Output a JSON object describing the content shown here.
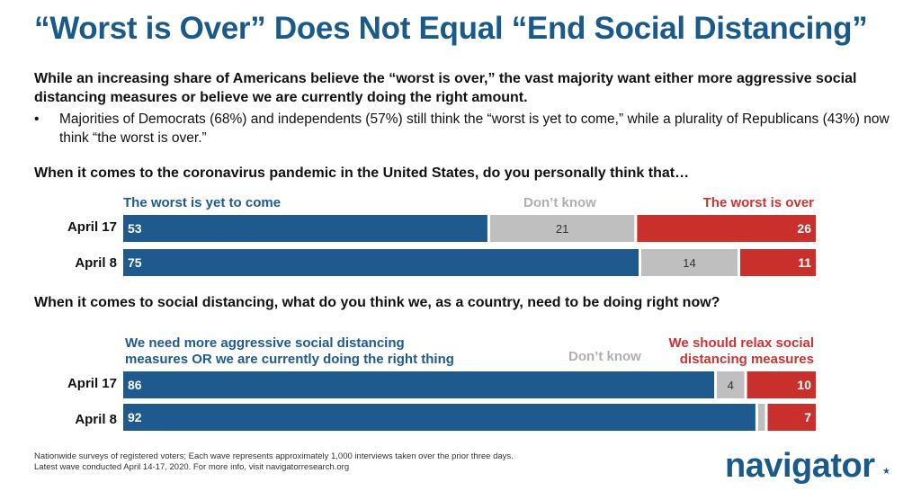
{
  "title": "“Worst is Over” Does Not Equal “End Social Distancing”",
  "lead": "While an increasing share of Americans believe the “worst is over,” the vast majority want either more aggressive social distancing measures or believe we are currently doing the right amount.",
  "bullet": {
    "marker": "•",
    "text": "Majorities of Democrats (68%) and independents (57%) still think the “worst is yet to come,” while a plurality of Republicans (43%) now think “the worst is over.”"
  },
  "chart_data": [
    {
      "type": "bar",
      "stacked": true,
      "orientation": "horizontal",
      "title": "When it comes to the coronavirus pandemic in the United States, do you personally think that…",
      "categories": [
        "April 17",
        "April 8"
      ],
      "series": [
        {
          "name": "The worst is yet to come",
          "values": [
            53,
            75
          ],
          "color": "#1f5a8e"
        },
        {
          "name": "Don’t know",
          "values": [
            21,
            14
          ],
          "color": "#bfbfbf"
        },
        {
          "name": "The worst is over",
          "values": [
            26,
            11
          ],
          "color": "#c9302c"
        }
      ],
      "xlim": [
        0,
        100
      ]
    },
    {
      "type": "bar",
      "stacked": true,
      "orientation": "horizontal",
      "title": "When it comes to social distancing, what do you think we, as a country, need to be doing right now?",
      "categories": [
        "April 17",
        "April 8"
      ],
      "series": [
        {
          "name": "We need more aggressive social distancing measures OR we are currently doing the right thing",
          "values": [
            86,
            92
          ],
          "color": "#1f5a8e"
        },
        {
          "name": "Don’t know",
          "values": [
            4,
            1
          ],
          "color": "#bfbfbf"
        },
        {
          "name": "We should relax social distancing measures",
          "values": [
            10,
            7
          ],
          "color": "#c9302c"
        }
      ],
      "data_labels": [
        [
          "86",
          "4",
          "10"
        ],
        [
          "92",
          "",
          "7"
        ]
      ],
      "xlim": [
        0,
        100
      ]
    }
  ],
  "legend_headers": {
    "chart1": {
      "blue": "The worst is yet to come",
      "gray": "Don’t know",
      "red": "The worst is over"
    },
    "chart2": {
      "blue_line1": "We need more aggressive social distancing",
      "blue_line2": "measures OR we are currently doing the right thing",
      "gray": "Don’t know",
      "red_line1": "We should relax social",
      "red_line2": "distancing measures"
    }
  },
  "footnote": {
    "line1": "Nationwide surveys of registered voters; Each wave represents approximately 1,000 interviews taken over the prior three days.",
    "line2": "Latest wave conducted April 14-17, 2020. For more info, visit navigatorresearch.org"
  },
  "logo": {
    "text": "navigator",
    "mark": "★"
  }
}
